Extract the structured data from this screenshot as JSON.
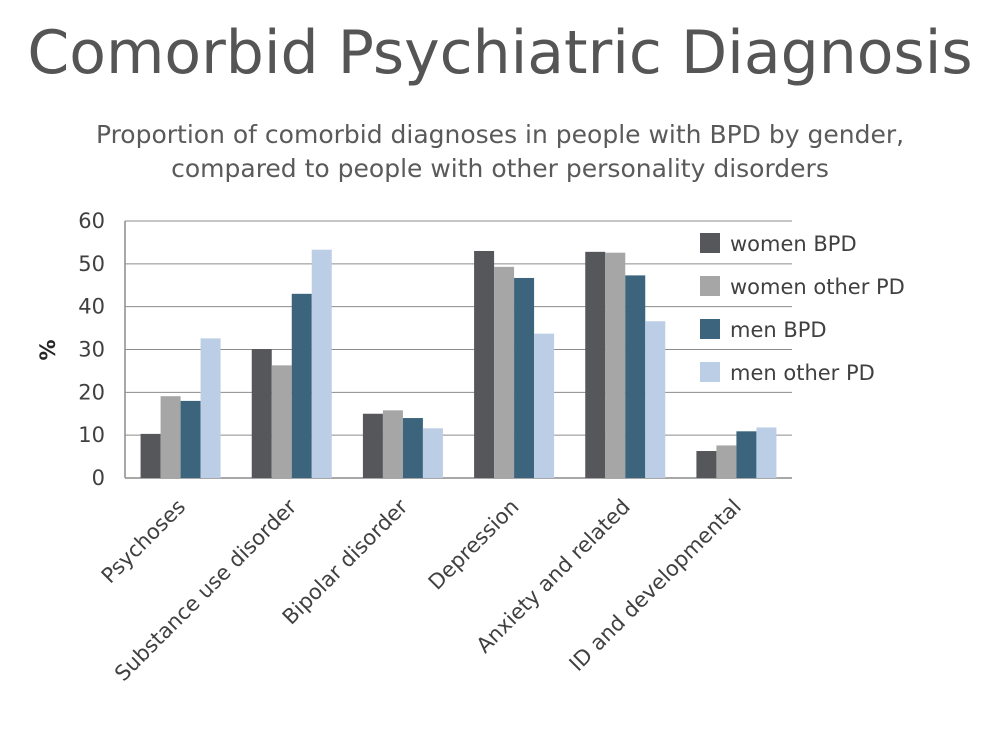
{
  "title": "Comorbid Psychiatric Diagnosis",
  "subtitle_line1": "Proportion of comorbid diagnoses in people with BPD by gender,",
  "subtitle_line2": "compared to people with other personality disorders",
  "colors": {
    "women BPD": "#56575b",
    "women other PD": "#a6a6a6",
    "men BPD": "#3c657d",
    "men other PD": "#bccde6"
  },
  "chart_data": {
    "type": "bar",
    "title": "Comorbid Psychiatric Diagnosis",
    "subtitle": "Proportion of comorbid diagnoses in people with BPD by gender, compared to people with other personality disorders",
    "xlabel": "",
    "ylabel": "%",
    "ylim": [
      0,
      60
    ],
    "yticks": [
      0,
      10,
      20,
      30,
      40,
      50,
      60
    ],
    "grid": true,
    "legend_position": "right",
    "categories": [
      "Psychoses",
      "Substance use disorder",
      "Bipolar disorder",
      "Depression",
      "Anxiety and related",
      "ID and developmental"
    ],
    "series": [
      {
        "name": "women BPD",
        "values": [
          10.3,
          30.1,
          15.0,
          53.0,
          52.8,
          6.3
        ]
      },
      {
        "name": "women other PD",
        "values": [
          19.1,
          26.3,
          15.8,
          49.3,
          52.6,
          7.6
        ]
      },
      {
        "name": "men BPD",
        "values": [
          18.0,
          43.0,
          14.0,
          46.7,
          47.3,
          10.9
        ]
      },
      {
        "name": "men other PD",
        "values": [
          32.6,
          53.3,
          11.6,
          33.7,
          36.6,
          11.8
        ]
      }
    ]
  }
}
